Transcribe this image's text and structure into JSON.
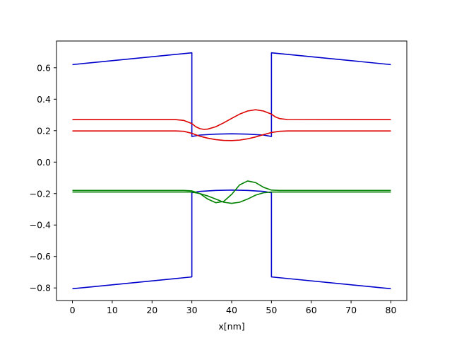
{
  "chart_data": {
    "type": "line",
    "title": "",
    "xlabel": "x[nm]",
    "ylabel": "",
    "xlim": [
      -4,
      84
    ],
    "ylim": [
      -0.88,
      0.77
    ],
    "xticks": [
      0,
      10,
      20,
      30,
      40,
      50,
      60,
      70,
      80
    ],
    "yticks": [
      -0.8,
      -0.6,
      -0.4,
      -0.2,
      0.0,
      0.2,
      0.4,
      0.6
    ],
    "ytick_labels": [
      "−0.8",
      "−0.6",
      "−0.4",
      "−0.2",
      "0.0",
      "0.2",
      "0.4",
      "0.6"
    ],
    "xtick_labels": [
      "0",
      "10",
      "20",
      "30",
      "40",
      "50",
      "60",
      "70",
      "80"
    ],
    "grid": false,
    "legend": "none",
    "series": [
      {
        "color": "#0000cc",
        "x": [
          0,
          30,
          30,
          32,
          36,
          40,
          44,
          48,
          50,
          50,
          80
        ],
        "y": [
          0.62,
          0.695,
          0.163,
          0.172,
          0.178,
          0.18,
          0.178,
          0.172,
          0.163,
          0.695,
          0.62
        ]
      },
      {
        "color": "#0000cc",
        "x": [
          0,
          30,
          30,
          32,
          36,
          40,
          44,
          48,
          50,
          50,
          80
        ],
        "y": [
          -0.805,
          -0.73,
          -0.195,
          -0.186,
          -0.18,
          -0.178,
          -0.18,
          -0.186,
          -0.195,
          -0.73,
          -0.805
        ]
      },
      {
        "color": "#dd0000",
        "x": [
          0,
          26,
          28,
          30,
          31,
          32,
          33,
          34,
          36,
          38,
          40,
          42,
          44,
          46,
          48,
          49,
          50,
          51,
          52,
          54,
          80
        ],
        "y": [
          0.27,
          0.27,
          0.265,
          0.245,
          0.225,
          0.213,
          0.208,
          0.21,
          0.225,
          0.25,
          0.278,
          0.305,
          0.325,
          0.333,
          0.325,
          0.315,
          0.305,
          0.287,
          0.277,
          0.271,
          0.27
        ]
      },
      {
        "color": "#dd0000",
        "x": [
          0,
          26,
          28,
          30,
          32,
          34,
          36,
          38,
          40,
          42,
          44,
          46,
          48,
          50,
          52,
          54,
          80
        ],
        "y": [
          0.198,
          0.198,
          0.196,
          0.183,
          0.165,
          0.152,
          0.143,
          0.138,
          0.137,
          0.14,
          0.148,
          0.16,
          0.175,
          0.188,
          0.196,
          0.198,
          0.198
        ]
      },
      {
        "color": "#008000",
        "x": [
          0,
          28,
          30,
          32,
          34,
          36,
          38,
          40,
          42,
          44,
          46,
          48,
          50,
          52,
          80
        ],
        "y": [
          -0.18,
          -0.18,
          -0.183,
          -0.2,
          -0.235,
          -0.258,
          -0.25,
          -0.205,
          -0.145,
          -0.12,
          -0.13,
          -0.16,
          -0.178,
          -0.18,
          -0.18
        ]
      },
      {
        "color": "#008000",
        "x": [
          0,
          28,
          30,
          32,
          34,
          36,
          38,
          40,
          42,
          44,
          46,
          48,
          50,
          52,
          80
        ],
        "y": [
          -0.19,
          -0.19,
          -0.19,
          -0.2,
          -0.215,
          -0.235,
          -0.255,
          -0.262,
          -0.255,
          -0.235,
          -0.21,
          -0.195,
          -0.19,
          -0.19,
          -0.19
        ]
      }
    ]
  }
}
